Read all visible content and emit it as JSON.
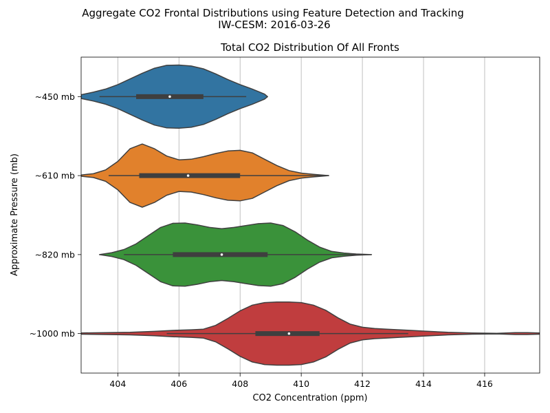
{
  "chart_data": {
    "type": "violin",
    "suptitle_line1": "Aggregate CO2 Frontal Distributions using Feature Detection and Tracking",
    "suptitle_line2": "IW-CESM: 2016-03-26",
    "title": "Total CO2 Distribution Of All Fronts",
    "xlabel": "CO2 Concentration (ppm)",
    "ylabel": "Approximate Pressure (mb)",
    "xlim": [
      402.8,
      417.8
    ],
    "xticks": [
      404,
      406,
      408,
      410,
      412,
      414,
      416
    ],
    "xgrid": true,
    "ygrid": false,
    "series": [
      {
        "name": "~450 mb",
        "color": "#3274a1",
        "whisker": [
          403.4,
          408.2
        ],
        "box": [
          404.6,
          406.8
        ],
        "median": 405.7,
        "profile": [
          [
            402.8,
            0.06
          ],
          [
            403.2,
            0.14
          ],
          [
            403.6,
            0.24
          ],
          [
            404.0,
            0.38
          ],
          [
            404.4,
            0.56
          ],
          [
            404.8,
            0.74
          ],
          [
            405.2,
            0.9
          ],
          [
            405.6,
            0.99
          ],
          [
            406.0,
            1.0
          ],
          [
            406.4,
            0.97
          ],
          [
            406.8,
            0.88
          ],
          [
            407.2,
            0.72
          ],
          [
            407.6,
            0.54
          ],
          [
            408.0,
            0.38
          ],
          [
            408.4,
            0.24
          ],
          [
            408.8,
            0.08
          ],
          [
            408.9,
            0.0
          ]
        ]
      },
      {
        "name": "~610 mb",
        "color": "#e1812c",
        "whisker": [
          403.7,
          410.9
        ],
        "box": [
          404.7,
          408.0
        ],
        "median": 406.3,
        "profile": [
          [
            402.8,
            0.02
          ],
          [
            403.2,
            0.06
          ],
          [
            403.6,
            0.18
          ],
          [
            404.0,
            0.45
          ],
          [
            404.4,
            0.85
          ],
          [
            404.8,
            1.0
          ],
          [
            405.2,
            0.85
          ],
          [
            405.6,
            0.62
          ],
          [
            406.0,
            0.5
          ],
          [
            406.4,
            0.52
          ],
          [
            406.8,
            0.6
          ],
          [
            407.2,
            0.7
          ],
          [
            407.6,
            0.78
          ],
          [
            408.0,
            0.8
          ],
          [
            408.4,
            0.72
          ],
          [
            408.8,
            0.52
          ],
          [
            409.2,
            0.32
          ],
          [
            409.6,
            0.16
          ],
          [
            410.0,
            0.08
          ],
          [
            410.4,
            0.04
          ],
          [
            410.9,
            0.0
          ]
        ]
      },
      {
        "name": "~820 mb",
        "color": "#3a923a",
        "whisker": [
          404.2,
          412.3
        ],
        "box": [
          405.8,
          408.9
        ],
        "median": 407.4,
        "profile": [
          [
            403.4,
            0.0
          ],
          [
            403.8,
            0.06
          ],
          [
            404.2,
            0.16
          ],
          [
            404.6,
            0.34
          ],
          [
            405.0,
            0.6
          ],
          [
            405.4,
            0.86
          ],
          [
            405.8,
            0.99
          ],
          [
            406.2,
            1.0
          ],
          [
            406.6,
            0.94
          ],
          [
            407.0,
            0.86
          ],
          [
            407.4,
            0.82
          ],
          [
            407.8,
            0.86
          ],
          [
            408.2,
            0.92
          ],
          [
            408.6,
            0.98
          ],
          [
            409.0,
            1.0
          ],
          [
            409.4,
            0.92
          ],
          [
            409.8,
            0.72
          ],
          [
            410.2,
            0.46
          ],
          [
            410.6,
            0.24
          ],
          [
            411.0,
            0.1
          ],
          [
            411.4,
            0.05
          ],
          [
            411.8,
            0.02
          ],
          [
            412.3,
            0.0
          ]
        ]
      },
      {
        "name": "~1000 mb",
        "color": "#c03d3e",
        "whisker": [
          405.6,
          413.5
        ],
        "box": [
          408.5,
          410.6
        ],
        "median": 409.6,
        "profile": [
          [
            402.8,
            0.02
          ],
          [
            403.6,
            0.03
          ],
          [
            404.4,
            0.04
          ],
          [
            405.2,
            0.07
          ],
          [
            405.8,
            0.1
          ],
          [
            406.4,
            0.12
          ],
          [
            406.8,
            0.14
          ],
          [
            407.2,
            0.26
          ],
          [
            407.6,
            0.48
          ],
          [
            408.0,
            0.72
          ],
          [
            408.4,
            0.9
          ],
          [
            408.8,
            0.98
          ],
          [
            409.2,
            1.0
          ],
          [
            409.6,
            1.0
          ],
          [
            410.0,
            0.98
          ],
          [
            410.4,
            0.9
          ],
          [
            410.8,
            0.74
          ],
          [
            411.2,
            0.5
          ],
          [
            411.6,
            0.3
          ],
          [
            412.0,
            0.2
          ],
          [
            412.4,
            0.16
          ],
          [
            412.8,
            0.14
          ],
          [
            413.2,
            0.12
          ],
          [
            413.6,
            0.1
          ],
          [
            414.0,
            0.08
          ],
          [
            414.4,
            0.06
          ],
          [
            414.8,
            0.04
          ],
          [
            415.6,
            0.02
          ],
          [
            416.4,
            0.01
          ],
          [
            417.0,
            0.03
          ],
          [
            417.4,
            0.03
          ],
          [
            417.8,
            0.02
          ]
        ]
      }
    ]
  }
}
